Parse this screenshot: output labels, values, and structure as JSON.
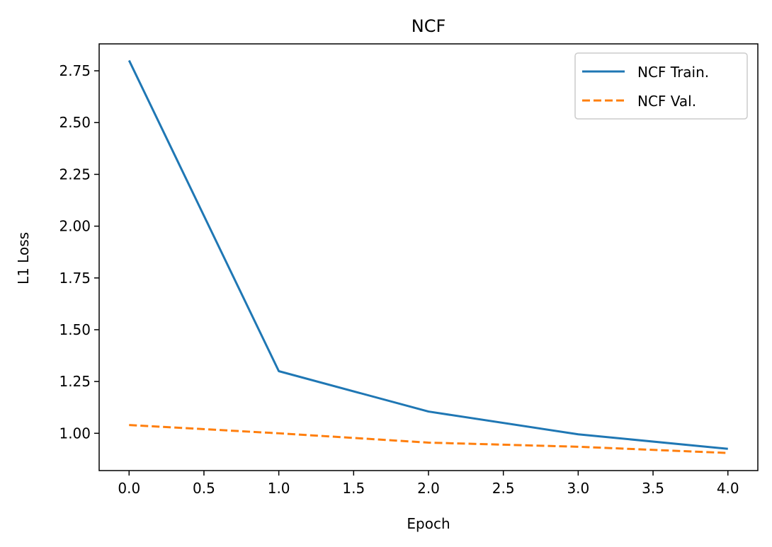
{
  "chart_data": {
    "type": "line",
    "title": "NCF",
    "xlabel": "Epoch",
    "ylabel": "L1 Loss",
    "xlim": [
      -0.2,
      4.2
    ],
    "ylim": [
      0.82,
      2.88
    ],
    "xticks": [
      0.0,
      0.5,
      1.0,
      1.5,
      2.0,
      2.5,
      3.0,
      3.5,
      4.0
    ],
    "xtick_labels": [
      "0.0",
      "0.5",
      "1.0",
      "1.5",
      "2.0",
      "2.5",
      "3.0",
      "3.5",
      "4.0"
    ],
    "yticks": [
      1.0,
      1.25,
      1.5,
      1.75,
      2.0,
      2.25,
      2.5,
      2.75
    ],
    "ytick_labels": [
      "1.00",
      "1.25",
      "1.50",
      "1.75",
      "2.00",
      "2.25",
      "2.50",
      "2.75"
    ],
    "grid": false,
    "legend_position": "top-right",
    "series": [
      {
        "name": "NCF Train.",
        "color": "#1f77b4",
        "line_style": "solid",
        "x": [
          0,
          1,
          2,
          3,
          4
        ],
        "values": [
          2.8,
          1.3,
          1.105,
          0.995,
          0.925
        ]
      },
      {
        "name": "NCF Val.",
        "color": "#ff7f0e",
        "line_style": "dashed",
        "x": [
          0,
          1,
          2,
          3,
          4
        ],
        "values": [
          1.04,
          1.0,
          0.955,
          0.935,
          0.905
        ]
      }
    ]
  }
}
